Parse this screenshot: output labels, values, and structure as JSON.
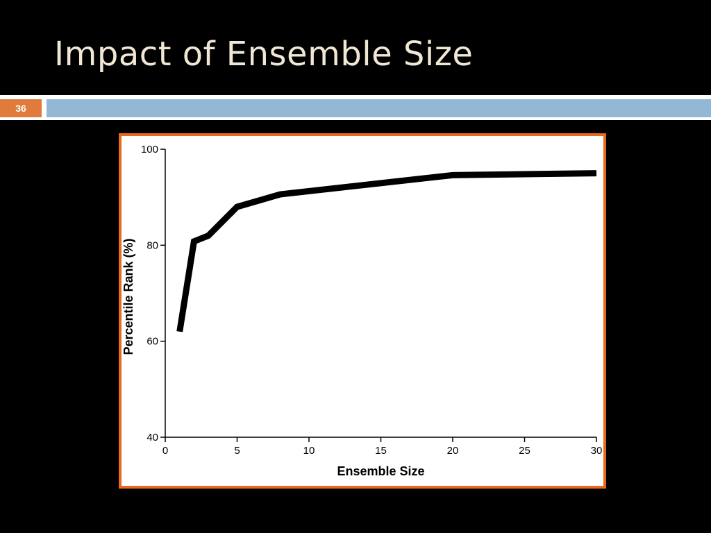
{
  "slide": {
    "title": "Impact of Ensemble Size",
    "number": "36"
  },
  "chart_data": {
    "type": "line",
    "title": "",
    "xlabel": "Ensemble Size",
    "ylabel": "Percentile Rank (%)",
    "xlim": [
      0,
      30
    ],
    "ylim": [
      40,
      100
    ],
    "x_ticks": [
      0,
      5,
      10,
      15,
      20,
      25,
      30
    ],
    "y_ticks": [
      40,
      60,
      80,
      100
    ],
    "grid": false,
    "legend": "none",
    "series": [
      {
        "x": [
          1,
          2,
          3,
          5,
          8,
          20,
          30
        ],
        "y": [
          62,
          80.8,
          82,
          88,
          90.6,
          94.6,
          95
        ],
        "color": "#000000"
      }
    ]
  }
}
